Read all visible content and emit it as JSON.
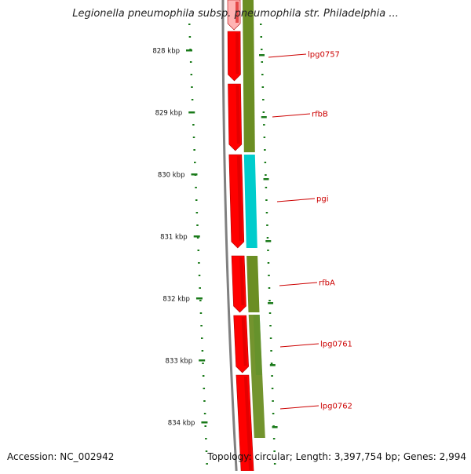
{
  "map": {
    "title": "Legionella pneumophila subsp. pneumophila str. Philadelphia ...",
    "accession": "Accession: NC_002942",
    "topology": "Topology: circular; Length: 3,397,754 bp; Genes: 2,994",
    "ticks": [
      {
        "kbp": 828,
        "label": "828 kbp"
      },
      {
        "kbp": 829,
        "label": "829 kbp"
      },
      {
        "kbp": 830,
        "label": "830 kbp"
      },
      {
        "kbp": 831,
        "label": "831 kbp"
      },
      {
        "kbp": 832,
        "label": "832 kbp"
      },
      {
        "kbp": 833,
        "label": "833 kbp"
      },
      {
        "kbp": 834,
        "label": "834 kbp"
      }
    ],
    "gene_labels": [
      "lpg0757",
      "rfbB",
      "pgi",
      "rfbA",
      "lpg0761",
      "lpg0762"
    ],
    "colors": {
      "gene": "#ff0000",
      "cog_olive": "#6b8e23",
      "cog_cyan": "#00cccc",
      "backbone": "#808080",
      "tick": "#1a7a1a",
      "label": "#cc0000"
    }
  }
}
